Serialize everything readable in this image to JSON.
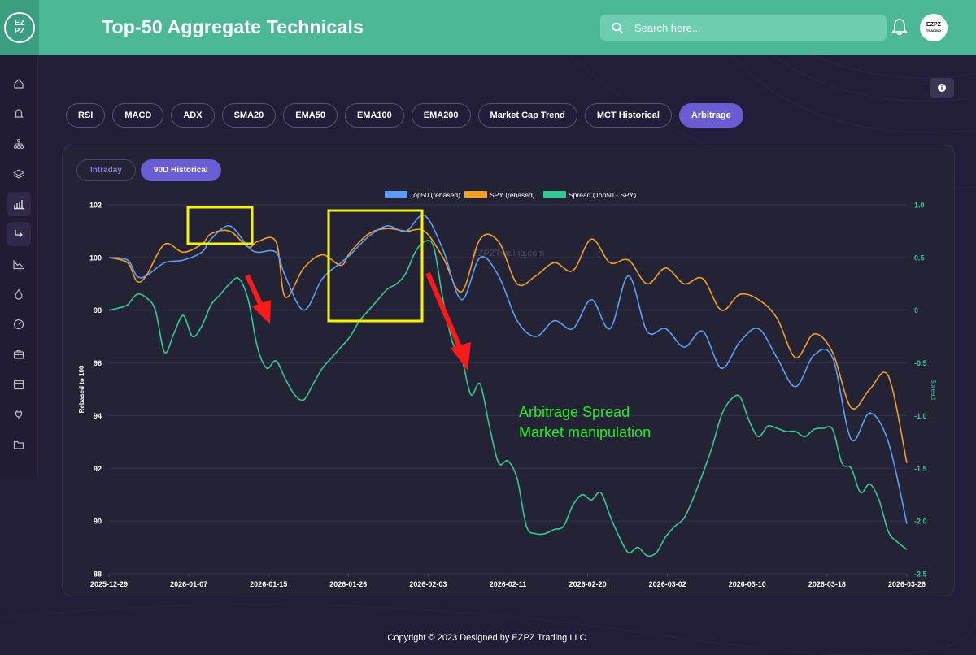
{
  "header": {
    "logo_line1": "EZ",
    "logo_line2": "PZ",
    "title": "Top-50 Aggregate Technicals"
  },
  "search": {
    "placeholder": "Search here..."
  },
  "avatar": {
    "line1": "EZPZ",
    "line2": "TRADING"
  },
  "icons": {
    "bell": "bell-icon",
    "search": "search-icon",
    "info": "info-icon"
  },
  "sidebar": {
    "items": [
      "home-icon",
      "notification-icon",
      "hierarchy-icon",
      "layers-icon",
      "bar-chart-icon",
      "turn-arrow-icon",
      "line-chart-icon",
      "drop-icon",
      "gauge-icon",
      "briefcase-icon",
      "calendar-icon",
      "plug-icon",
      "folder-icon"
    ]
  },
  "tabs": [
    {
      "label": "RSI"
    },
    {
      "label": "MACD"
    },
    {
      "label": "ADX"
    },
    {
      "label": "SMA20"
    },
    {
      "label": "EMA50"
    },
    {
      "label": "EMA100"
    },
    {
      "label": "EMA200"
    },
    {
      "label": "Market Cap Trend"
    },
    {
      "label": "MCT Historical"
    },
    {
      "label": "Arbitrage",
      "active": true
    }
  ],
  "subtabs": [
    {
      "label": "Intraday"
    },
    {
      "label": "90D Historical",
      "active": true
    }
  ],
  "colors": {
    "top50": "#5b9df5",
    "spy": "#f0a020",
    "spread": "#32c993",
    "accent": "#6a5cd2",
    "header": "#4db896",
    "annotation_box": "#f5f50a",
    "annotation_arrow": "#ff1a1a",
    "annotation_text": "#22ee22"
  },
  "chart_data": {
    "type": "line",
    "watermark": "EZPZTrading.com",
    "ylabel": "Rebased to 100",
    "y2label": "Spread",
    "ylim": [
      88,
      102
    ],
    "y2lim": [
      -2.5,
      1.0
    ],
    "yticks": [
      "88",
      "90",
      "92",
      "94",
      "96",
      "98",
      "100",
      "102"
    ],
    "y2ticks": [
      "-2.5",
      "-2.0",
      "-1.5",
      "-1.0",
      "-0.5",
      "0",
      "0.5",
      "1.0"
    ],
    "xticks": [
      "2025-12-29",
      "2026-01-07",
      "2026-01-15",
      "2026-01-26",
      "2026-02-03",
      "2026-02-11",
      "2026-02-20",
      "2026-03-02",
      "2026-03-10",
      "2026-03-18",
      "2026-03-26"
    ],
    "x_range": [
      0,
      86
    ],
    "legend": "top",
    "series": [
      {
        "name": "Top50 (rebased)",
        "axis": "left",
        "x": [
          0,
          2,
          3,
          4,
          6,
          8,
          10,
          11,
          13,
          15,
          16,
          18,
          19,
          21,
          23,
          25,
          26,
          28,
          30,
          32,
          34,
          36,
          38,
          40,
          42,
          44,
          46,
          48,
          50,
          52,
          54,
          56,
          58,
          60,
          62,
          64,
          66,
          68,
          70,
          72,
          74,
          76,
          78,
          80,
          82,
          84,
          86
        ],
        "y": [
          100.0,
          99.9,
          99.3,
          99.3,
          99.8,
          99.9,
          100.2,
          100.7,
          101.2,
          100.4,
          100.2,
          100.2,
          99.3,
          98.0,
          99.2,
          99.8,
          100.1,
          100.8,
          101.2,
          101.0,
          101.6,
          100.3,
          98.4,
          100.0,
          99.3,
          97.6,
          97.0,
          97.6,
          97.3,
          98.4,
          97.3,
          99.3,
          97.2,
          97.3,
          96.6,
          97.2,
          95.8,
          96.8,
          97.3,
          96.2,
          95.1,
          96.3,
          96.2,
          93.1,
          94.1,
          93.0,
          89.9
        ]
      },
      {
        "name": "SPY (rebased)",
        "axis": "left",
        "x": [
          0,
          2,
          3,
          4,
          6,
          8,
          10,
          11,
          13,
          15,
          16,
          18,
          19,
          21,
          23,
          25,
          26,
          28,
          30,
          32,
          34,
          36,
          38,
          40,
          42,
          44,
          46,
          48,
          50,
          52,
          54,
          56,
          58,
          60,
          62,
          64,
          66,
          68,
          70,
          72,
          74,
          76,
          78,
          80,
          82,
          84,
          86
        ],
        "y": [
          100.0,
          99.8,
          99.1,
          99.3,
          100.5,
          100.2,
          100.5,
          100.9,
          101.0,
          100.4,
          100.6,
          100.6,
          98.5,
          99.6,
          100.1,
          99.7,
          100.2,
          100.9,
          101.1,
          101.0,
          101.0,
          100.0,
          98.7,
          100.7,
          100.6,
          99.0,
          99.3,
          99.8,
          99.5,
          100.7,
          99.8,
          99.9,
          99.0,
          99.6,
          99.0,
          99.2,
          98.0,
          98.6,
          98.4,
          97.7,
          96.2,
          97.1,
          96.4,
          94.3,
          95.0,
          95.5,
          92.2
        ]
      },
      {
        "name": "Spread (Top50 - SPY)",
        "axis": "right",
        "x": [
          0,
          1,
          2,
          3,
          4,
          5,
          6,
          7,
          8,
          9,
          10,
          11,
          12,
          13,
          14,
          15,
          16,
          17,
          18,
          19,
          20,
          21,
          22,
          23,
          24,
          25,
          26,
          27,
          28,
          29,
          30,
          31,
          32,
          33,
          34,
          35,
          36,
          37,
          38,
          39,
          40,
          41,
          42,
          43,
          44,
          45,
          46,
          47,
          48,
          49,
          50,
          51,
          52,
          53,
          54,
          55,
          56,
          57,
          58,
          59,
          60,
          61,
          62,
          63,
          64,
          65,
          66,
          67,
          68,
          69,
          70,
          71,
          72,
          73,
          74,
          75,
          76,
          77,
          78,
          79,
          80,
          81,
          82,
          83,
          84,
          85,
          86
        ],
        "y": [
          0.0,
          0.02,
          0.05,
          0.15,
          0.12,
          0.0,
          -0.4,
          -0.22,
          -0.05,
          -0.25,
          -0.15,
          0.05,
          0.15,
          0.25,
          0.3,
          0.1,
          -0.35,
          -0.55,
          -0.48,
          -0.65,
          -0.8,
          -0.85,
          -0.7,
          -0.55,
          -0.45,
          -0.35,
          -0.25,
          -0.1,
          0.0,
          0.1,
          0.2,
          0.25,
          0.35,
          0.55,
          0.65,
          0.6,
          0.1,
          -0.3,
          -0.45,
          -0.8,
          -0.7,
          -1.1,
          -1.45,
          -1.43,
          -1.6,
          -2.05,
          -2.12,
          -2.12,
          -2.08,
          -2.05,
          -1.85,
          -1.75,
          -1.8,
          -1.73,
          -1.95,
          -2.15,
          -2.3,
          -2.25,
          -2.33,
          -2.3,
          -2.15,
          -2.05,
          -1.97,
          -1.78,
          -1.55,
          -1.3,
          -1.0,
          -0.85,
          -0.82,
          -1.05,
          -1.2,
          -1.1,
          -1.12,
          -1.15,
          -1.15,
          -1.2,
          -1.13,
          -1.12,
          -1.13,
          -1.45,
          -1.5,
          -1.73,
          -1.65,
          -1.8,
          -2.1,
          -2.2,
          -2.27
        ]
      }
    ],
    "annotations": {
      "text_line1": "Arbitrage Spread",
      "text_line2": "Market manipulation"
    }
  },
  "footer": {
    "text": "Copyright © 2023 Designed by EZPZ Trading LLC."
  }
}
